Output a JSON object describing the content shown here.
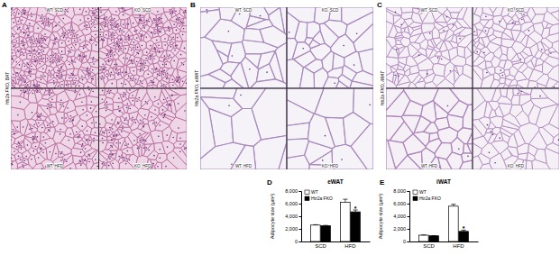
{
  "panels": [
    {
      "letter": "A",
      "label": "Htr2a FKO, BAT",
      "quadrants": [
        "WT, SCD",
        "KO, SCD",
        "WT, HFD",
        "KO, HFD"
      ]
    },
    {
      "letter": "B",
      "label": "Htr2a FKO, eWAT",
      "quadrants": [
        "WT, SCD",
        "KO, SCD",
        "WT, HFD",
        "KO, HFD"
      ]
    },
    {
      "letter": "C",
      "label": "Htr2a FKO, iWAT",
      "quadrants": [
        "WT, SCD",
        "KO, SCD",
        "WT, HFD",
        "KO, HFD"
      ]
    }
  ],
  "chart_data": [
    {
      "type": "bar",
      "letter": "D",
      "title": "eWAT",
      "y_label": "Adipocyte size (μm²)",
      "categories": [
        "SCD",
        "HFD"
      ],
      "series": [
        {
          "name": "WT",
          "color": "#ffffff",
          "values": [
            2600,
            6200
          ],
          "errors": [
            60,
            500
          ]
        },
        {
          "name": "Htr2a FKO",
          "color": "#000000",
          "values": [
            2500,
            4700
          ],
          "errors": [
            50,
            300
          ]
        }
      ],
      "ylim": [
        0,
        8000
      ],
      "yticks": [
        0,
        {
          "value": 2000,
          "label": "2,000"
        },
        {
          "value": 4000,
          "label": "4,000"
        },
        {
          "value": 6000,
          "label": "6,000"
        },
        {
          "value": 8000,
          "label": "8,000"
        }
      ],
      "legend": "top-left",
      "annotations": [
        {
          "text": "*",
          "series": 1,
          "category": 1
        }
      ]
    },
    {
      "type": "bar",
      "letter": "E",
      "title": "iWAT",
      "y_label": "Adipocyte size (μm²)",
      "categories": [
        "SCD",
        "HFD"
      ],
      "series": [
        {
          "name": "WT",
          "color": "#ffffff",
          "values": [
            1000,
            5600
          ],
          "errors": [
            40,
            300
          ]
        },
        {
          "name": "Htr2a FKO",
          "color": "#000000",
          "values": [
            900,
            1600
          ],
          "errors": [
            30,
            200
          ]
        }
      ],
      "ylim": [
        0,
        8000
      ],
      "yticks": [
        0,
        {
          "value": 2000,
          "label": "2,000"
        },
        {
          "value": 4000,
          "label": "4,000"
        },
        {
          "value": 6000,
          "label": "6,000"
        },
        {
          "value": 8000,
          "label": "8,000"
        }
      ],
      "legend": "top-left",
      "annotations": [
        {
          "text": "*",
          "series": 1,
          "category": 1
        }
      ]
    }
  ]
}
